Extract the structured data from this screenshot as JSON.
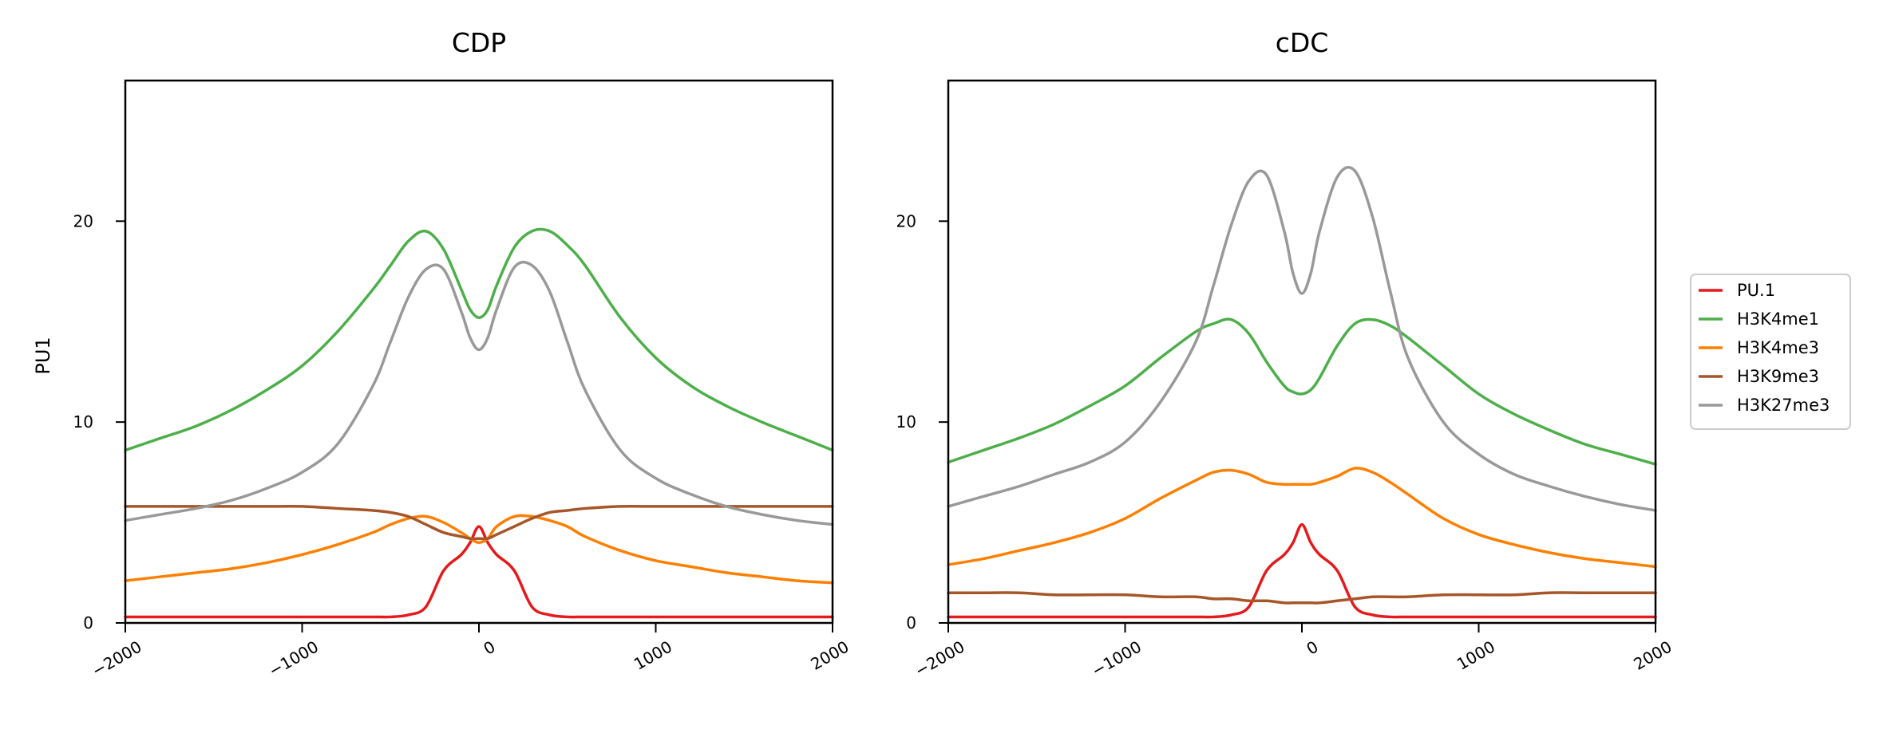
{
  "ylabel": "PU1",
  "legend_entries": [
    {
      "name": "PU.1",
      "color": "#e41a1c"
    },
    {
      "name": "H3K4me1",
      "color": "#4daf4a"
    },
    {
      "name": "H3K4me3",
      "color": "#ff7f00"
    },
    {
      "name": "H3K9me3",
      "color": "#a65628"
    },
    {
      "name": "H3K27me3",
      "color": "#999999"
    }
  ],
  "chart_data": [
    {
      "type": "line",
      "title": "CDP",
      "xlabel": "",
      "ylabel": "PU1",
      "xlim": [
        -2000,
        2000
      ],
      "ylim": [
        0,
        27
      ],
      "xticks": [
        -2000,
        -1000,
        0,
        1000,
        2000
      ],
      "xtick_labels": [
        "−2000",
        "−1000",
        "0",
        "1000",
        "2000"
      ],
      "yticks": [
        0,
        10,
        20
      ],
      "ytick_labels": [
        "0",
        "10",
        "20"
      ],
      "grid": false,
      "x": [
        -2000,
        -1800,
        -1600,
        -1400,
        -1200,
        -1000,
        -800,
        -600,
        -500,
        -400,
        -300,
        -200,
        -100,
        -50,
        0,
        50,
        100,
        200,
        300,
        400,
        500,
        600,
        800,
        1000,
        1200,
        1400,
        1600,
        1800,
        2000
      ],
      "series": [
        {
          "name": "PU.1",
          "color": "#e41a1c",
          "values": [
            0.3,
            0.3,
            0.3,
            0.3,
            0.3,
            0.3,
            0.3,
            0.3,
            0.3,
            0.4,
            0.8,
            2.6,
            3.4,
            4.0,
            4.8,
            4.0,
            3.4,
            2.6,
            0.8,
            0.4,
            0.3,
            0.3,
            0.3,
            0.3,
            0.3,
            0.3,
            0.3,
            0.3,
            0.3
          ]
        },
        {
          "name": "H3K4me1",
          "color": "#4daf4a",
          "values": [
            8.6,
            9.2,
            9.8,
            10.6,
            11.6,
            12.8,
            14.5,
            16.6,
            17.8,
            19.0,
            19.5,
            18.6,
            16.6,
            15.6,
            15.2,
            15.6,
            16.8,
            18.7,
            19.5,
            19.5,
            18.8,
            17.8,
            15.2,
            13.2,
            11.8,
            10.8,
            10.0,
            9.3,
            8.6
          ]
        },
        {
          "name": "H3K4me3",
          "color": "#ff7f00",
          "values": [
            2.1,
            2.3,
            2.5,
            2.7,
            3.0,
            3.4,
            3.9,
            4.5,
            4.9,
            5.2,
            5.3,
            5.0,
            4.5,
            4.2,
            4.0,
            4.2,
            4.8,
            5.3,
            5.3,
            5.1,
            4.8,
            4.3,
            3.6,
            3.1,
            2.8,
            2.5,
            2.3,
            2.1,
            2.0
          ]
        },
        {
          "name": "H3K9me3",
          "color": "#a65628",
          "values": [
            5.8,
            5.8,
            5.8,
            5.8,
            5.8,
            5.8,
            5.7,
            5.6,
            5.5,
            5.3,
            4.9,
            4.5,
            4.3,
            4.2,
            4.2,
            4.2,
            4.4,
            4.8,
            5.2,
            5.5,
            5.6,
            5.7,
            5.8,
            5.8,
            5.8,
            5.8,
            5.8,
            5.8,
            5.8
          ]
        },
        {
          "name": "H3K27me3",
          "color": "#999999",
          "values": [
            5.1,
            5.4,
            5.7,
            6.1,
            6.7,
            7.5,
            8.9,
            11.8,
            14.0,
            16.2,
            17.6,
            17.6,
            15.5,
            14.2,
            13.6,
            14.2,
            15.6,
            17.7,
            17.8,
            16.5,
            14.0,
            11.6,
            8.6,
            7.2,
            6.4,
            5.8,
            5.4,
            5.1,
            4.9
          ]
        }
      ]
    },
    {
      "type": "line",
      "title": "cDC",
      "xlabel": "",
      "ylabel": "",
      "xlim": [
        -2000,
        2000
      ],
      "ylim": [
        0,
        27
      ],
      "xticks": [
        -2000,
        -1000,
        0,
        1000,
        2000
      ],
      "xtick_labels": [
        "−2000",
        "−1000",
        "0",
        "1000",
        "2000"
      ],
      "yticks": [
        0,
        10,
        20
      ],
      "ytick_labels": [
        "0",
        "10",
        "20"
      ],
      "grid": false,
      "x": [
        -2000,
        -1800,
        -1600,
        -1400,
        -1200,
        -1000,
        -800,
        -600,
        -500,
        -400,
        -300,
        -200,
        -100,
        -50,
        0,
        50,
        100,
        200,
        300,
        400,
        500,
        600,
        800,
        1000,
        1200,
        1400,
        1600,
        1800,
        2000
      ],
      "series": [
        {
          "name": "PU.1",
          "color": "#e41a1c",
          "values": [
            0.3,
            0.3,
            0.3,
            0.3,
            0.3,
            0.3,
            0.3,
            0.3,
            0.3,
            0.4,
            0.8,
            2.6,
            3.4,
            4.0,
            4.9,
            4.0,
            3.4,
            2.6,
            0.8,
            0.4,
            0.3,
            0.3,
            0.3,
            0.3,
            0.3,
            0.3,
            0.3,
            0.3,
            0.3
          ]
        },
        {
          "name": "H3K4me1",
          "color": "#4daf4a",
          "values": [
            8.0,
            8.6,
            9.2,
            9.9,
            10.8,
            11.8,
            13.2,
            14.5,
            14.9,
            15.1,
            14.4,
            13.0,
            11.8,
            11.5,
            11.4,
            11.6,
            12.2,
            13.8,
            14.9,
            15.1,
            14.8,
            14.2,
            12.8,
            11.4,
            10.4,
            9.6,
            8.9,
            8.4,
            7.9
          ]
        },
        {
          "name": "H3K4me3",
          "color": "#ff7f00",
          "values": [
            2.9,
            3.2,
            3.6,
            4.0,
            4.5,
            5.2,
            6.2,
            7.1,
            7.5,
            7.6,
            7.4,
            7.0,
            6.9,
            6.9,
            6.9,
            6.9,
            7.0,
            7.3,
            7.7,
            7.5,
            7.0,
            6.4,
            5.2,
            4.4,
            3.9,
            3.5,
            3.2,
            3.0,
            2.8
          ]
        },
        {
          "name": "H3K9me3",
          "color": "#a65628",
          "values": [
            1.5,
            1.5,
            1.5,
            1.4,
            1.4,
            1.4,
            1.3,
            1.3,
            1.2,
            1.2,
            1.1,
            1.1,
            1.0,
            1.0,
            1.0,
            1.0,
            1.0,
            1.1,
            1.2,
            1.3,
            1.3,
            1.3,
            1.4,
            1.4,
            1.4,
            1.5,
            1.5,
            1.5,
            1.5
          ]
        },
        {
          "name": "H3K27me3",
          "color": "#999999",
          "values": [
            5.8,
            6.3,
            6.8,
            7.4,
            8.0,
            9.0,
            11.0,
            14.0,
            16.8,
            19.8,
            22.0,
            22.3,
            19.5,
            17.4,
            16.4,
            17.4,
            19.5,
            22.2,
            22.5,
            20.2,
            16.5,
            13.2,
            10.0,
            8.4,
            7.4,
            6.8,
            6.3,
            5.9,
            5.6
          ]
        }
      ]
    }
  ]
}
